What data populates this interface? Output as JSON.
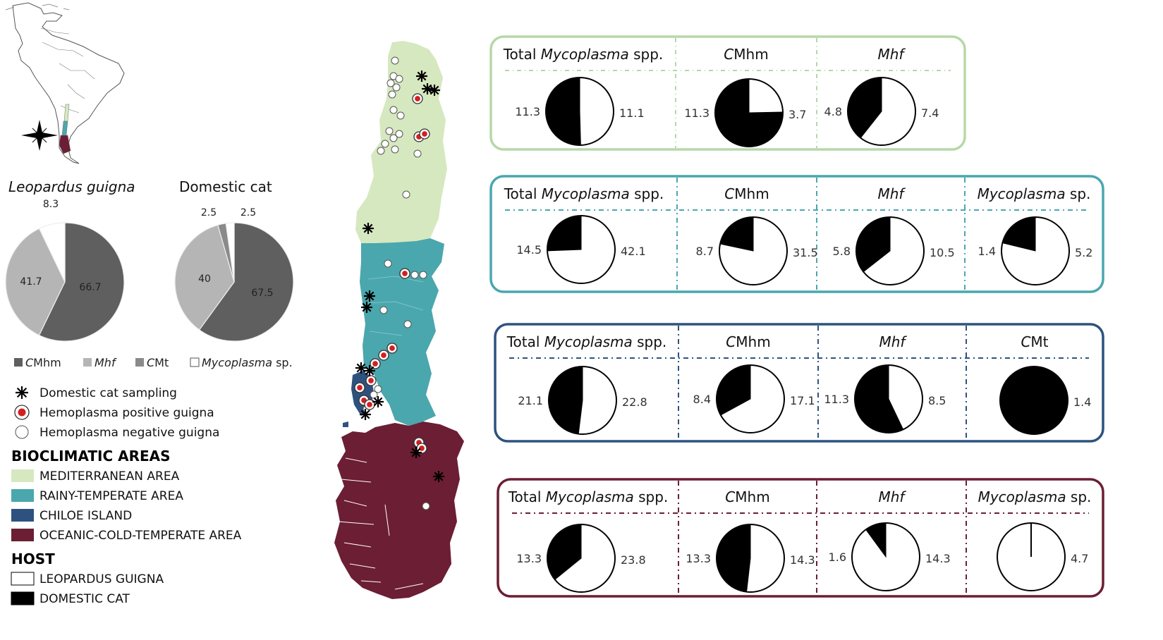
{
  "colors": {
    "mediterranean": "#d6e8bf",
    "rainy": "#4aa7ad",
    "chiloe": "#2e527f",
    "oceanic": "#6b1e34",
    "cmhm": "#5f5f5f",
    "mhf": "#b5b5b5",
    "cmt": "#8a8a8a",
    "myco": "#ffffff",
    "domestic": "#000000",
    "positive": "#d22020"
  },
  "species_pies": {
    "guigna": {
      "title": "Leopardus guigna",
      "values": [
        66.7,
        41.7,
        8.3
      ],
      "labels": [
        "66.7",
        "41.7",
        "8.3"
      ]
    },
    "domestic": {
      "title": "Domestic cat",
      "values": [
        67.5,
        40,
        2.5,
        2.5
      ],
      "labels": [
        "67.5",
        "40",
        "2.5",
        "2.5"
      ]
    }
  },
  "legend": {
    "agents": [
      {
        "prefix": "C",
        "name": "Mhm",
        "style": "cmhm"
      },
      {
        "prefix": "",
        "name": "Mhf",
        "style": "mhf"
      },
      {
        "prefix": "C",
        "name": "Mt",
        "style": "cmt"
      },
      {
        "prefix": "",
        "name": "Mycoplasma",
        "suffix": " sp.",
        "style": "myco"
      }
    ],
    "markers": [
      {
        "icon": "asterisk",
        "label": "Domestic cat sampling"
      },
      {
        "icon": "positive",
        "label": "Hemoplasma positive guigna"
      },
      {
        "icon": "negative",
        "label": "Hemoplasma negative guigna"
      }
    ],
    "areas_title": "BIOCLIMATIC AREAS",
    "areas": [
      {
        "label": "MEDITERRANEAN AREA",
        "color": "mediterranean"
      },
      {
        "label": "RAINY-TEMPERATE AREA",
        "color": "rainy"
      },
      {
        "label": "CHILOE ISLAND",
        "color": "chiloe"
      },
      {
        "label": "OCEANIC-COLD-TEMPERATE AREA",
        "color": "oceanic"
      }
    ],
    "host_title": "HOST",
    "hosts": [
      {
        "label": "LEOPARDUS GUIGNA",
        "fill": "#ffffff"
      },
      {
        "label": "DOMESTIC CAT",
        "fill": "#000000"
      }
    ]
  },
  "chart_data": [
    {
      "type": "pie",
      "region": "MEDITERRANEAN AREA",
      "headers": [
        {
          "parts": [
            [
              "Total ",
              false
            ],
            [
              "Mycoplasma",
              true
            ],
            [
              " spp.",
              false
            ]
          ]
        },
        {
          "parts": [
            [
              "C",
              true
            ],
            [
              "Mhm",
              false
            ]
          ]
        },
        {
          "parts": [
            [
              "Mhf",
              true
            ]
          ]
        }
      ],
      "pies": [
        {
          "black": 11.3,
          "white": 11.1,
          "left": "11.3",
          "right": "11.1"
        },
        {
          "black": 11.3,
          "white": 3.7,
          "left": "11.3",
          "right": "3.7"
        },
        {
          "black": 4.8,
          "white": 7.4,
          "left": "4.8",
          "right": "7.4"
        }
      ]
    },
    {
      "type": "pie",
      "region": "RAINY-TEMPERATE AREA",
      "headers": [
        {
          "parts": [
            [
              "Total ",
              false
            ],
            [
              "Mycoplasma",
              true
            ],
            [
              " spp.",
              false
            ]
          ]
        },
        {
          "parts": [
            [
              "C",
              true
            ],
            [
              "Mhm",
              false
            ]
          ]
        },
        {
          "parts": [
            [
              "Mhf",
              true
            ]
          ]
        },
        {
          "parts": [
            [
              "Mycoplasma",
              true
            ],
            [
              " sp.",
              false
            ]
          ]
        }
      ],
      "pies": [
        {
          "black": 14.5,
          "white": 42.1,
          "left": "14.5",
          "right": "42.1"
        },
        {
          "black": 8.7,
          "white": 31.5,
          "left": "8.7",
          "right": "31.5"
        },
        {
          "black": 5.8,
          "white": 10.5,
          "left": "5.8",
          "right": "10.5"
        },
        {
          "black": 1.4,
          "white": 5.2,
          "left": "1.4",
          "right": "5.2"
        }
      ]
    },
    {
      "type": "pie",
      "region": "CHILOE ISLAND",
      "headers": [
        {
          "parts": [
            [
              "Total ",
              false
            ],
            [
              "Mycoplasma",
              true
            ],
            [
              " spp.",
              false
            ]
          ]
        },
        {
          "parts": [
            [
              "C",
              true
            ],
            [
              "Mhm",
              false
            ]
          ]
        },
        {
          "parts": [
            [
              "Mhf",
              true
            ]
          ]
        },
        {
          "parts": [
            [
              "C",
              true
            ],
            [
              "Mt",
              false
            ]
          ]
        }
      ],
      "pies": [
        {
          "black": 21.1,
          "white": 22.8,
          "left": "21.1",
          "right": "22.8"
        },
        {
          "black": 8.4,
          "white": 17.1,
          "left": "8.4",
          "right": "17.1"
        },
        {
          "black": 11.3,
          "white": 8.5,
          "left": "11.3",
          "right": "8.5"
        },
        {
          "black": 1.4,
          "white": 0,
          "left": "",
          "right": "1.4"
        }
      ]
    },
    {
      "type": "pie",
      "region": "OCEANIC-COLD-TEMPERATE AREA",
      "headers": [
        {
          "parts": [
            [
              "Total ",
              false
            ],
            [
              "Mycoplasma",
              true
            ],
            [
              " spp.",
              false
            ]
          ]
        },
        {
          "parts": [
            [
              "C",
              true
            ],
            [
              "Mhm",
              false
            ]
          ]
        },
        {
          "parts": [
            [
              "Mhf",
              true
            ]
          ]
        },
        {
          "parts": [
            [
              "Mycoplasma",
              true
            ],
            [
              " sp.",
              false
            ]
          ]
        }
      ],
      "pies": [
        {
          "black": 13.3,
          "white": 23.8,
          "left": "13.3",
          "right": "23.8"
        },
        {
          "black": 13.3,
          "white": 14.3,
          "left": "13.3",
          "right": "14.3"
        },
        {
          "black": 1.6,
          "white": 14.3,
          "left": "1.6",
          "right": "14.3"
        },
        {
          "black": 0,
          "white": 4.7,
          "left": "",
          "right": "4.7"
        }
      ]
    }
  ]
}
